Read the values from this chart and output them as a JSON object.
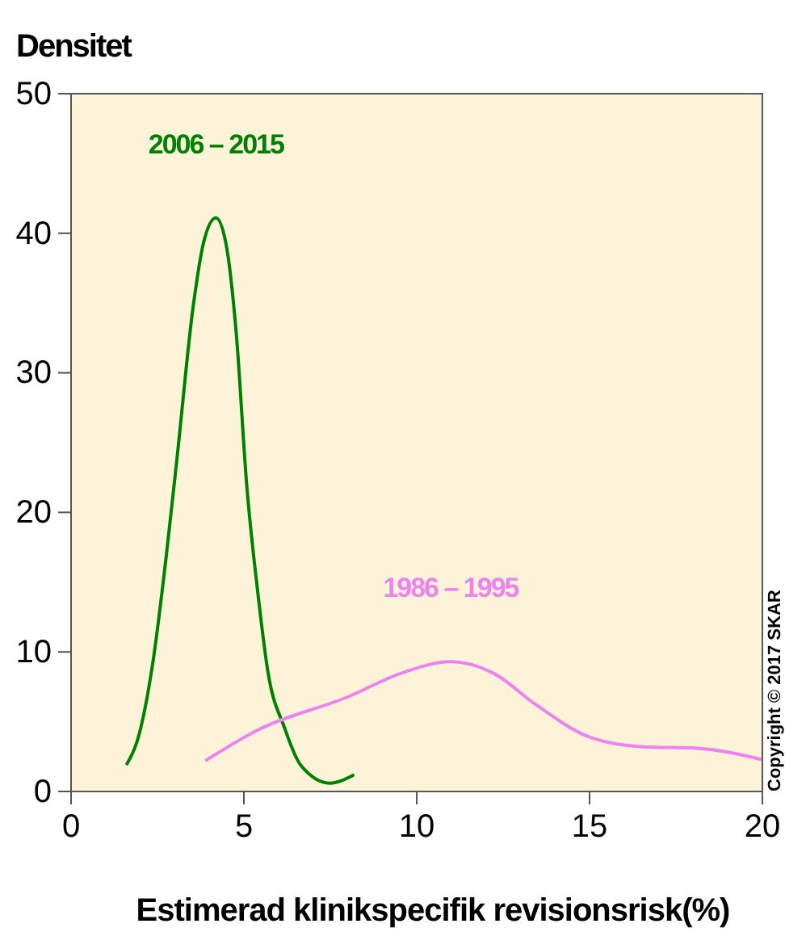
{
  "chart_data": {
    "type": "line",
    "title": "Densitet",
    "xlabel": "Estimerad klinikspecifik revisionsrisk(%)",
    "xlim": [
      0,
      20
    ],
    "xticks": [
      0,
      5,
      10,
      15,
      20
    ],
    "ylim": [
      0,
      50
    ],
    "yticks": [
      0,
      10,
      20,
      30,
      40,
      50
    ],
    "grid": false,
    "legend": false,
    "marker": "none",
    "series": [
      {
        "name": "2006 – 2015",
        "color": "#008000",
        "x": [
          1.6,
          1.98,
          2.37,
          2.76,
          3.07,
          3.53,
          3.84,
          4.19,
          4.47,
          4.78,
          5.08,
          5.4,
          5.7,
          6.17,
          6.64,
          7.49,
          8.19
        ],
        "values": [
          1.9,
          4.2,
          9.3,
          17,
          24,
          34.7,
          39.4,
          41.1,
          39.4,
          32.8,
          22,
          14.3,
          8.5,
          4.6,
          1.9,
          0.6,
          1.2
        ]
      },
      {
        "name": "1986 – 1995",
        "color": "#ee82ee",
        "x": [
          3.88,
          5.4,
          8.03,
          9.58,
          10.98,
          12.2,
          13.46,
          15.0,
          16.56,
          18.1,
          19.97
        ],
        "values": [
          2.2,
          4.4,
          6.8,
          8.5,
          9.3,
          8.5,
          6.2,
          3.9,
          3.2,
          3.1,
          2.3
        ]
      }
    ],
    "annotations": [
      "Copyright © 2017 SKAR"
    ]
  }
}
